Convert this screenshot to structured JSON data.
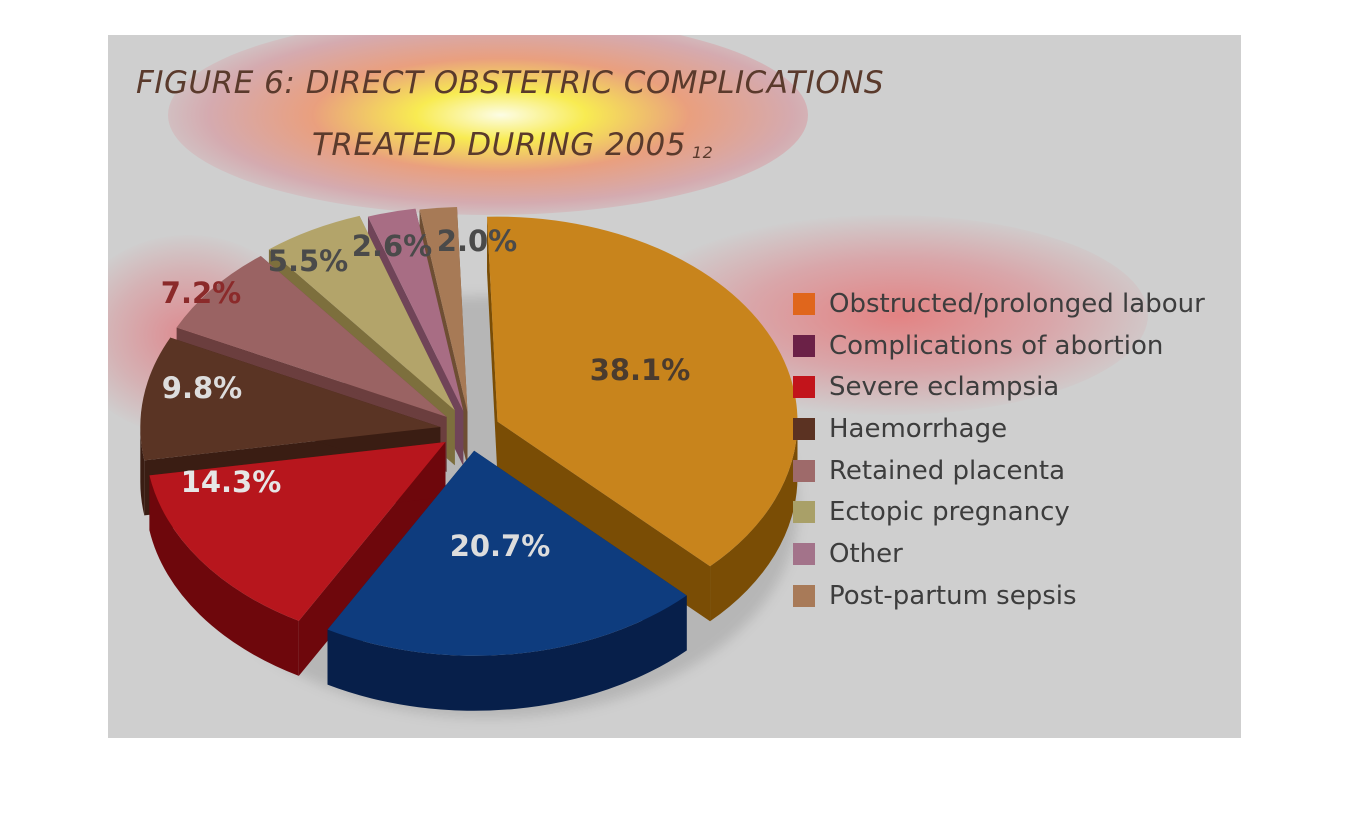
{
  "chart_data": {
    "type": "pie",
    "title_line1": "FIGURE 6: DIRECT OBSTETRIC COMPLICATIONS",
    "title_line2": "TREATED DURING 2005",
    "title_superscript": "12",
    "legend_position": "right",
    "slices": [
      {
        "label": "Obstructed/prolonged labour",
        "value": 38.1,
        "display": "38.1%",
        "color": "#c8841c",
        "side_color": "#7a4d05",
        "label_color": "#4a3b2e"
      },
      {
        "label": "Complications of abortion",
        "value": 20.7,
        "display": "20.7%",
        "color": "#0e3c7e",
        "side_color": "#071f4a",
        "label_color": "#dddddd"
      },
      {
        "label": "Severe eclampsia",
        "value": 14.3,
        "display": "14.3%",
        "color": "#b7161d",
        "side_color": "#6e070c",
        "label_color": "#e6e6e6"
      },
      {
        "label": "Haemorrhage",
        "value": 9.8,
        "display": "9.8%",
        "color": "#5a3424",
        "side_color": "#3a1d13",
        "label_color": "#dddddd"
      },
      {
        "label": "Retained placenta",
        "value": 7.2,
        "display": "7.2%",
        "color": "#9a6363",
        "side_color": "#6b3e3e",
        "label_color": "#8b2a2a"
      },
      {
        "label": "Ectopic pregnancy",
        "value": 5.5,
        "display": "5.5%",
        "color": "#b3a46a",
        "side_color": "#7d6f3d",
        "label_color": "#4a4a4a"
      },
      {
        "label": "Other",
        "value": 2.6,
        "display": "2.6%",
        "color": "#a86d84",
        "side_color": "#704458",
        "label_color": "#4a4a4a"
      },
      {
        "label": "Post-partum sepsis",
        "value": 2.0,
        "display": "2.0%",
        "color": "#a77a56",
        "side_color": "#6e4e33",
        "label_color": "#4a4a4a"
      }
    ],
    "legend": [
      {
        "label": "Obstructed/prolonged labour",
        "color": "#e0661c"
      },
      {
        "label": "Complications of abortion",
        "color": "#6b2147"
      },
      {
        "label": "Severe eclampsia",
        "color": "#c2141b"
      },
      {
        "label": "Haemorrhage",
        "color": "#5b3222"
      },
      {
        "label": "Retained placenta",
        "color": "#9e6a6a"
      },
      {
        "label": "Ectopic pregnancy",
        "color": "#a9a068"
      },
      {
        "label": "Other",
        "color": "#a3738a"
      },
      {
        "label": "Post-partum sepsis",
        "color": "#a87a58"
      }
    ]
  }
}
